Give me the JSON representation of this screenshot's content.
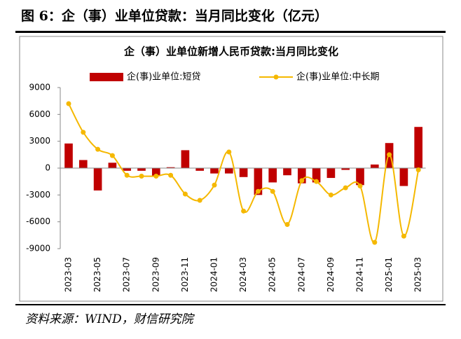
{
  "header": {
    "title": "图 6：企（事）业单位贷款：当月同比变化（亿元）"
  },
  "chart_data": {
    "type": "bar",
    "title": "企（事）业单位新增人民币贷款:当月同比变化",
    "categories": [
      "2023-03",
      null,
      "2023-05",
      null,
      "2023-07",
      null,
      "2023-09",
      null,
      "2023-11",
      null,
      "2024-01",
      null,
      "2024-03",
      null,
      "2024-05",
      null,
      "2024-07",
      null,
      "2024-09",
      null,
      "2024-11",
      null,
      "2025-01",
      null,
      "2025-03"
    ],
    "series": [
      {
        "name": "企(事)业单位:短贷",
        "type": "bar",
        "color": "#c00000",
        "values": [
          2750,
          900,
          -2500,
          600,
          -300,
          -300,
          -900,
          100,
          2000,
          -300,
          -600,
          -600,
          -1000,
          -3000,
          -1600,
          -800,
          -1700,
          -1600,
          -1100,
          -200,
          -1900,
          400,
          2800,
          -2000,
          4600
        ]
      },
      {
        "name": "企(事)业单位:中长期",
        "type": "line",
        "color": "#f5b800",
        "values": [
          7200,
          4000,
          2100,
          1400,
          -800,
          -900,
          -900,
          -800,
          -2900,
          -3600,
          -1900,
          1800,
          -4800,
          -2600,
          -2600,
          -6300,
          -1400,
          -1500,
          -3000,
          -2200,
          -2000,
          -8300,
          1500,
          -7600,
          -200
        ]
      }
    ],
    "ylim": [
      -9000,
      9000
    ],
    "yticks": [
      -9000,
      -6000,
      -3000,
      0,
      3000,
      6000,
      9000
    ]
  },
  "source": "资料来源：WIND，财信研究院"
}
